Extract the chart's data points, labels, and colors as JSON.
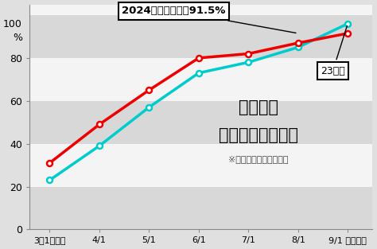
{
  "x_labels": [
    "3月1日時点",
    "4/1",
    "5/1",
    "6/1",
    "7/1",
    "8/1",
    "9/1 卵業時点"
  ],
  "x_positions": [
    0,
    1,
    2,
    3,
    4,
    5,
    6
  ],
  "red_values": [
    31,
    49,
    65,
    80,
    82,
    87,
    91.5
  ],
  "cyan_values": [
    23,
    39,
    57,
    73,
    78,
    85,
    96
  ],
  "red_color": "#ee0000",
  "cyan_color": "#00cccc",
  "bg_color": "#d8d8d8",
  "stripe_colors": [
    "#d8d8d8",
    "#f4f4f4"
  ],
  "ylim": [
    0,
    105
  ],
  "yticks": [
    0,
    20,
    40,
    60,
    80,
    100
  ],
  "title_line1": "大学生の",
  "title_line2": "就職内定率の推移",
  "subtitle": "※リクルート調査による",
  "label_2024": "2024年卵業予定｜91.5%",
  "label_23": "23年卵",
  "marker": "o",
  "marker_size": 5,
  "line_width": 2.5,
  "fig_bg": "#e0e0e0"
}
